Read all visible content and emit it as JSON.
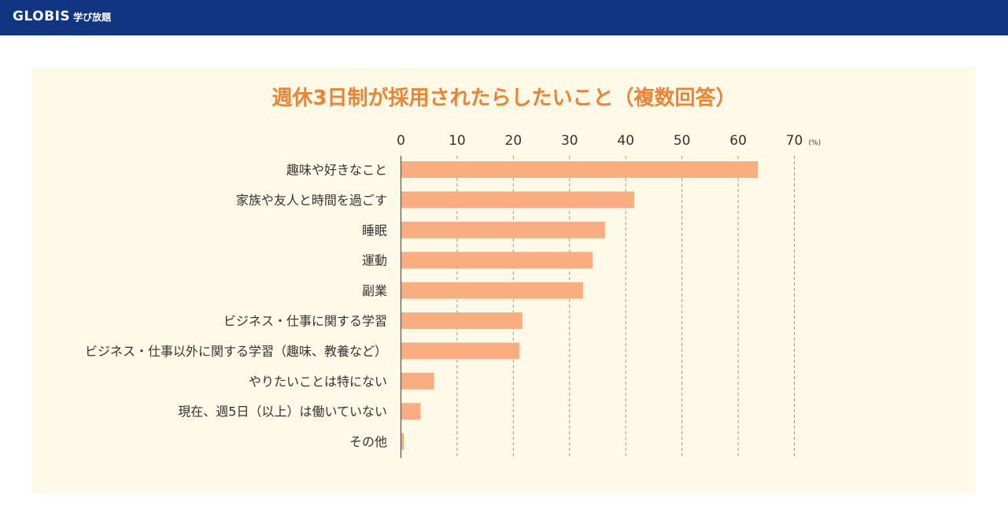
{
  "header": {
    "brand_main": "GLOBIS",
    "brand_sub": "学び放題",
    "bar_color": "#0f3583"
  },
  "chart_data": {
    "type": "bar",
    "orientation": "horizontal",
    "title": "週休3日制が採用されたらしたいこと（複数回答）",
    "unit": "(%)",
    "xlim": [
      0,
      70
    ],
    "xticks": [
      0,
      10,
      20,
      30,
      40,
      50,
      60,
      70
    ],
    "grid": "vertical dashed",
    "bar_color": "#f9ad80",
    "title_color": "#f08232",
    "background": "#fff9e8",
    "categories": [
      "趣味や好きなこと",
      "家族や友人と時間を過ごす",
      "睡眠",
      "運動",
      "副業",
      "ビジネス・仕事に関する学習",
      "ビジネス・仕事以外に関する学習（趣味、教養など）",
      "やりたいことは特にない",
      "現在、週5日（以上）は働いていない",
      "その他"
    ],
    "values": [
      63.5,
      41.5,
      36.3,
      34.1,
      32.4,
      21.6,
      21.1,
      5.9,
      3.5,
      0.5
    ]
  }
}
